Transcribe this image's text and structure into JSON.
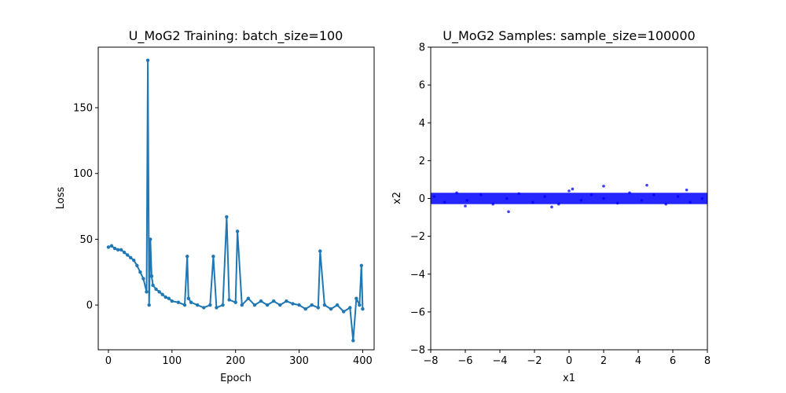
{
  "chart_data": [
    {
      "type": "line",
      "title": "U_MoG2 Training: batch_size=100",
      "xlabel": "Epoch",
      "ylabel": "Loss",
      "xlim": [
        -16,
        418
      ],
      "ylim": [
        -34,
        196
      ],
      "xticks": [
        0,
        100,
        200,
        300,
        400
      ],
      "yticks": [
        0,
        50,
        100,
        150
      ],
      "color": "#1f77b4",
      "markers": true,
      "grid": false,
      "series": [
        {
          "x": [
            0,
            5,
            10,
            15,
            20,
            25,
            30,
            35,
            40,
            45,
            50,
            55,
            60,
            62,
            64,
            66,
            68,
            70,
            75,
            80,
            85,
            90,
            95,
            100,
            110,
            120,
            124,
            126,
            130,
            140,
            150,
            160,
            165,
            170,
            180,
            186,
            190,
            200,
            203,
            210,
            220,
            230,
            240,
            250,
            260,
            270,
            280,
            290,
            300,
            310,
            320,
            330,
            333,
            340,
            350,
            360,
            370,
            380,
            385,
            390,
            395,
            398,
            400
          ],
          "y": [
            44,
            45,
            43,
            42,
            42,
            40,
            38,
            36,
            34,
            30,
            25,
            20,
            10,
            186,
            0,
            50,
            22,
            15,
            12,
            10,
            8,
            6,
            5,
            3,
            2,
            0,
            37,
            5,
            2,
            0,
            -2,
            0,
            37,
            -2,
            0,
            67,
            4,
            2,
            56,
            0,
            5,
            0,
            3,
            0,
            3,
            0,
            3,
            1,
            0,
            -3,
            0,
            -2,
            41,
            0,
            -3,
            0,
            -5,
            -2,
            -27,
            5,
            0,
            30,
            -3
          ]
        }
      ]
    },
    {
      "type": "scatter",
      "title": "U_MoG2 Samples: sample_size=100000",
      "xlabel": "x1",
      "ylabel": "x2",
      "xlim": [
        -8,
        8
      ],
      "ylim": [
        -8,
        8
      ],
      "xticks": [
        -8,
        -6,
        -4,
        -2,
        0,
        2,
        4,
        6,
        8
      ],
      "yticks": [
        -8,
        -6,
        -4,
        -2,
        0,
        2,
        4,
        6,
        8
      ],
      "color": "#0000ff",
      "grid": false,
      "series": [
        {
          "x": [
            -7.8,
            -7.2,
            -6.5,
            -5.9,
            -5.1,
            -4.4,
            -3.6,
            -2.9,
            -2.1,
            -1.4,
            -0.6,
            0.0,
            0.7,
            1.3,
            2.0,
            2.8,
            3.5,
            4.2,
            4.9,
            5.6,
            6.3,
            7.0,
            7.7,
            -3.5,
            0.2,
            2.0,
            4.5,
            -6.0,
            6.8,
            -1.0
          ],
          "y": [
            0.1,
            -0.2,
            0.3,
            -0.1,
            0.2,
            -0.3,
            0.0,
            0.25,
            -0.2,
            0.1,
            -0.3,
            0.4,
            -0.1,
            0.2,
            0.0,
            -0.25,
            0.3,
            -0.1,
            0.2,
            -0.3,
            0.1,
            -0.2,
            0.0,
            -0.7,
            0.5,
            0.65,
            0.7,
            -0.4,
            0.45,
            -0.45
          ]
        }
      ]
    }
  ]
}
